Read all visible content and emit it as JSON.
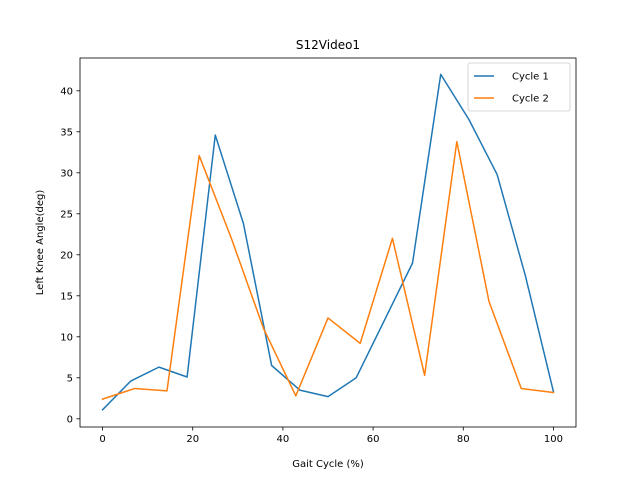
{
  "chart_data": {
    "type": "line",
    "title": "S12Video1",
    "xlabel": "Gait Cycle (%)",
    "ylabel": "Left Knee Angle(deg)",
    "xlim": [
      -5,
      105
    ],
    "ylim": [
      -1,
      44
    ],
    "xticks": [
      0,
      20,
      40,
      60,
      80,
      100
    ],
    "yticks": [
      0,
      5,
      10,
      15,
      20,
      25,
      30,
      35,
      40
    ],
    "grid": false,
    "legend_position": "top-right",
    "series": [
      {
        "name": "Cycle 1",
        "color": "#1f77b4",
        "x": [
          0,
          6.25,
          12.5,
          18.75,
          25,
          31.25,
          37.5,
          43.75,
          50,
          56.25,
          62.5,
          68.75,
          75,
          81.25,
          87.5,
          93.75,
          100
        ],
        "y": [
          1.1,
          4.6,
          6.3,
          5.1,
          34.6,
          23.8,
          6.5,
          3.5,
          2.7,
          5.0,
          12.0,
          19.0,
          42.0,
          36.5,
          29.8,
          17.5,
          3.3
        ]
      },
      {
        "name": "Cycle 2",
        "color": "#ff7f0e",
        "x": [
          0,
          7.14,
          14.29,
          21.43,
          28.57,
          35.71,
          42.86,
          50,
          57.14,
          64.29,
          71.43,
          78.57,
          85.71,
          92.86,
          100
        ],
        "y": [
          2.4,
          3.7,
          3.4,
          32.1,
          22.0,
          11.0,
          2.8,
          12.3,
          9.2,
          22.0,
          5.3,
          33.8,
          14.3,
          3.7,
          3.2
        ]
      }
    ]
  }
}
